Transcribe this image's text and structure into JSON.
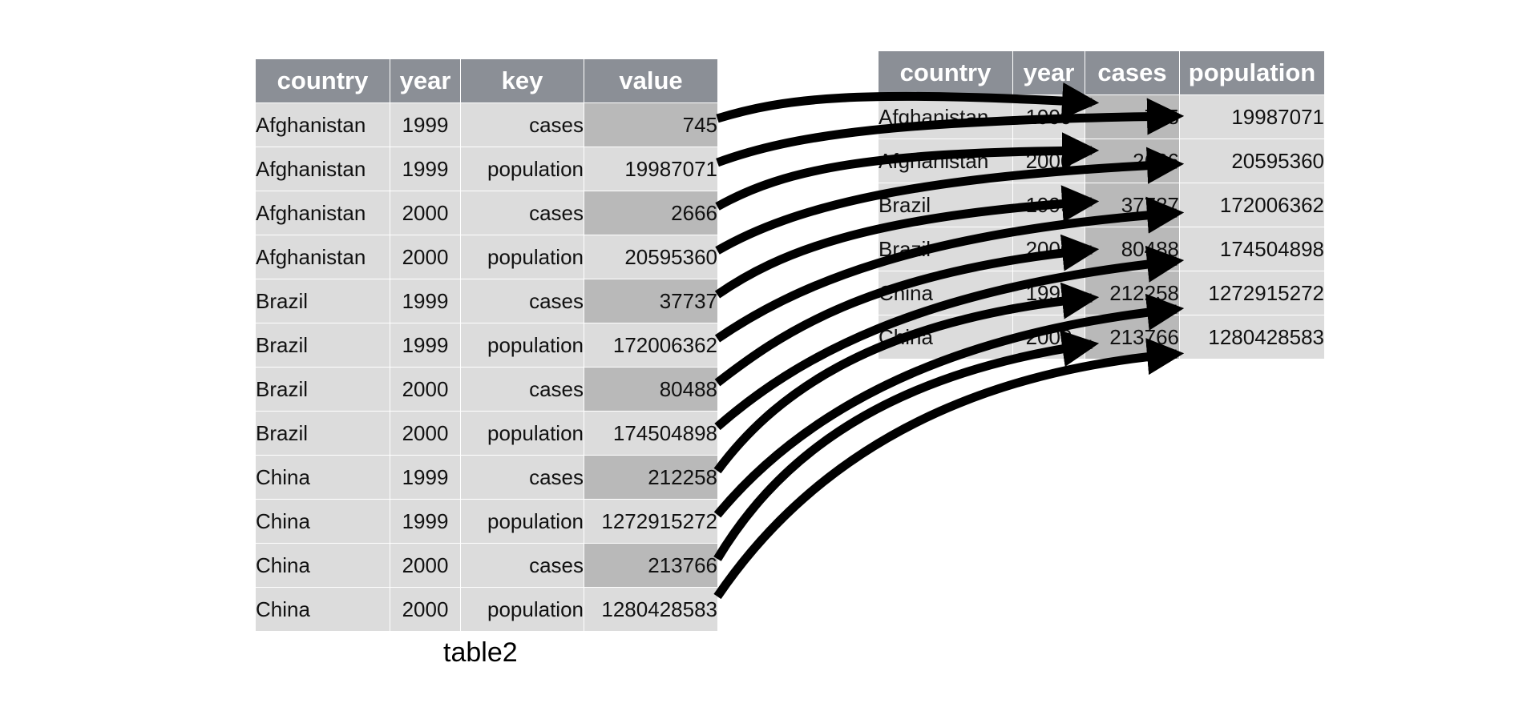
{
  "left_table": {
    "headers": [
      "country",
      "year",
      "key",
      "value"
    ],
    "rows": [
      [
        "Afghanistan",
        "1999",
        "cases",
        "745"
      ],
      [
        "Afghanistan",
        "1999",
        "population",
        "19987071"
      ],
      [
        "Afghanistan",
        "2000",
        "cases",
        "2666"
      ],
      [
        "Afghanistan",
        "2000",
        "population",
        "20595360"
      ],
      [
        "Brazil",
        "1999",
        "cases",
        "37737"
      ],
      [
        "Brazil",
        "1999",
        "population",
        "172006362"
      ],
      [
        "Brazil",
        "2000",
        "cases",
        "80488"
      ],
      [
        "Brazil",
        "2000",
        "population",
        "174504898"
      ],
      [
        "China",
        "1999",
        "cases",
        "212258"
      ],
      [
        "China",
        "1999",
        "population",
        "1272915272"
      ],
      [
        "China",
        "2000",
        "cases",
        "213766"
      ],
      [
        "China",
        "2000",
        "population",
        "1280428583"
      ]
    ],
    "caption": "table2"
  },
  "right_table": {
    "headers": [
      "country",
      "year",
      "cases",
      "population"
    ],
    "rows": [
      [
        "Afghanistan",
        "1999",
        "745",
        "19987071"
      ],
      [
        "Afghanistan",
        "2000",
        "2666",
        "20595360"
      ],
      [
        "Brazil",
        "1999",
        "37737",
        "172006362"
      ],
      [
        "Brazil",
        "2000",
        "80488",
        "174504898"
      ],
      [
        "China",
        "1999",
        "212258",
        "1272915272"
      ],
      [
        "China",
        "2000",
        "213766",
        "1280428583"
      ]
    ]
  },
  "colors": {
    "header_bg": "#8b8f96",
    "cell_bg": "#dcdcdc",
    "highlight_bg": "#b9b9b9",
    "arrow": "#000000"
  }
}
